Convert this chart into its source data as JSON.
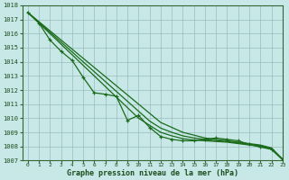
{
  "xlabel": "Graphe pression niveau de la mer (hPa)",
  "x": [
    0,
    1,
    2,
    3,
    4,
    5,
    6,
    7,
    8,
    9,
    10,
    11,
    12,
    13,
    14,
    15,
    16,
    17,
    18,
    19,
    20,
    21,
    22,
    23
  ],
  "ylim": [
    1007,
    1018
  ],
  "xlim": [
    -0.5,
    23
  ],
  "yticks": [
    1007,
    1008,
    1009,
    1010,
    1011,
    1012,
    1013,
    1014,
    1015,
    1016,
    1017,
    1018
  ],
  "line_straight1": [
    1017.5,
    1016.85,
    1016.2,
    1015.55,
    1014.9,
    1014.25,
    1013.6,
    1012.95,
    1012.3,
    1011.65,
    1011.0,
    1010.35,
    1009.7,
    1009.35,
    1009.0,
    1008.8,
    1008.6,
    1008.5,
    1008.4,
    1008.3,
    1008.2,
    1008.1,
    1007.9,
    1007.1
  ],
  "line_straight2": [
    1017.5,
    1016.8,
    1016.1,
    1015.4,
    1014.7,
    1014.0,
    1013.3,
    1012.6,
    1011.9,
    1011.2,
    1010.5,
    1009.8,
    1009.3,
    1009.0,
    1008.75,
    1008.6,
    1008.5,
    1008.4,
    1008.35,
    1008.25,
    1008.15,
    1008.05,
    1007.85,
    1007.1
  ],
  "line_straight3": [
    1017.5,
    1016.75,
    1016.0,
    1015.25,
    1014.5,
    1013.75,
    1013.0,
    1012.25,
    1011.5,
    1010.75,
    1010.0,
    1009.5,
    1009.0,
    1008.75,
    1008.55,
    1008.45,
    1008.4,
    1008.35,
    1008.3,
    1008.2,
    1008.1,
    1008.0,
    1007.8,
    1007.1
  ],
  "line_markers": [
    1017.5,
    1016.75,
    1015.55,
    1014.75,
    1014.1,
    1012.9,
    1011.8,
    1011.7,
    1011.55,
    1009.85,
    1010.2,
    1009.35,
    1008.7,
    1008.5,
    1008.4,
    1008.4,
    1008.5,
    1008.6,
    1008.5,
    1008.4,
    1008.15,
    1007.95,
    1007.8,
    1007.05
  ],
  "color_dark": "#1a6b1a",
  "color_mid": "#2a7a2a",
  "bg_color": "#c8e8e8",
  "grid_color": "#9abcbc",
  "text_color": "#1a4d1a",
  "spine_color": "#336633"
}
